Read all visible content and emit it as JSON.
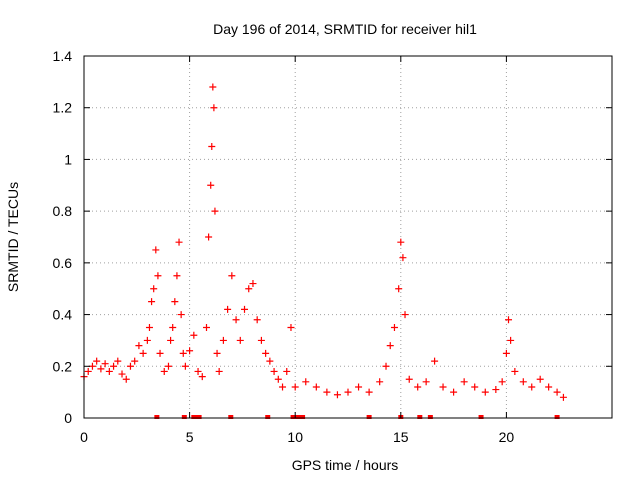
{
  "chart_data": {
    "type": "scatter",
    "title": "Day 196 of 2014, SRMTID for receiver hil1",
    "xlabel": "GPS time / hours",
    "ylabel": "SRMTID / TECUs",
    "xlim": [
      0,
      25
    ],
    "ylim": [
      0,
      1.4
    ],
    "x_ticks": [
      0,
      5,
      10,
      15,
      20
    ],
    "x_tick_labels": [
      "0",
      "5",
      "10",
      "15",
      "20"
    ],
    "y_ticks": [
      0,
      0.2,
      0.4,
      0.6,
      0.8,
      1,
      1.2,
      1.4
    ],
    "y_tick_labels": [
      "0",
      "0.2",
      "0.4",
      "0.6",
      "0.8",
      "1",
      "1.2",
      "1.4"
    ],
    "grid": true,
    "marker": "+",
    "color": "#ff0000",
    "series": [
      {
        "name": "SRMTID",
        "x": [
          0.0,
          0.2,
          0.4,
          0.6,
          0.8,
          1.0,
          1.2,
          1.4,
          1.6,
          1.8,
          2.0,
          2.2,
          2.4,
          2.6,
          2.8,
          3.0,
          3.1,
          3.2,
          3.3,
          3.4,
          3.5,
          3.6,
          3.8,
          4.0,
          4.1,
          4.2,
          4.3,
          4.4,
          4.5,
          4.6,
          4.7,
          4.8,
          5.0,
          5.2,
          5.4,
          5.6,
          5.8,
          5.9,
          6.0,
          6.05,
          6.1,
          6.15,
          6.2,
          6.3,
          6.4,
          6.6,
          6.8,
          7.0,
          7.2,
          7.4,
          7.6,
          7.8,
          8.0,
          8.2,
          8.4,
          8.6,
          8.8,
          9.0,
          9.2,
          9.4,
          9.6,
          9.8,
          10.0,
          10.5,
          11.0,
          11.5,
          12.0,
          12.5,
          13.0,
          13.5,
          14.0,
          14.3,
          14.5,
          14.7,
          14.9,
          15.0,
          15.1,
          15.2,
          15.4,
          15.8,
          16.2,
          16.6,
          17.0,
          17.5,
          18.0,
          18.5,
          19.0,
          19.5,
          19.8,
          20.0,
          20.1,
          20.2,
          20.4,
          20.8,
          21.2,
          21.6,
          22.0,
          22.4,
          22.7
        ],
        "y": [
          0.16,
          0.18,
          0.2,
          0.22,
          0.19,
          0.21,
          0.18,
          0.2,
          0.22,
          0.17,
          0.15,
          0.2,
          0.22,
          0.28,
          0.25,
          0.3,
          0.35,
          0.45,
          0.5,
          0.65,
          0.55,
          0.25,
          0.18,
          0.2,
          0.3,
          0.35,
          0.45,
          0.55,
          0.68,
          0.4,
          0.25,
          0.2,
          0.26,
          0.32,
          0.18,
          0.16,
          0.35,
          0.7,
          0.9,
          1.05,
          1.28,
          1.2,
          0.8,
          0.25,
          0.18,
          0.3,
          0.42,
          0.55,
          0.38,
          0.3,
          0.42,
          0.5,
          0.52,
          0.38,
          0.3,
          0.25,
          0.22,
          0.18,
          0.15,
          0.12,
          0.18,
          0.35,
          0.12,
          0.14,
          0.12,
          0.1,
          0.09,
          0.1,
          0.12,
          0.1,
          0.14,
          0.2,
          0.28,
          0.35,
          0.5,
          0.68,
          0.62,
          0.4,
          0.15,
          0.12,
          0.14,
          0.22,
          0.12,
          0.1,
          0.14,
          0.12,
          0.1,
          0.11,
          0.14,
          0.25,
          0.38,
          0.3,
          0.18,
          0.14,
          0.12,
          0.15,
          0.12,
          0.1,
          0.08
        ]
      }
    ],
    "baseline_markers": {
      "name": "zero-level markers",
      "x": [
        3.45,
        4.75,
        5.2,
        5.3,
        5.45,
        6.95,
        8.7,
        9.9,
        10.05,
        10.15,
        10.35,
        13.5,
        15.0,
        15.9,
        16.4,
        18.8,
        22.4
      ]
    }
  }
}
